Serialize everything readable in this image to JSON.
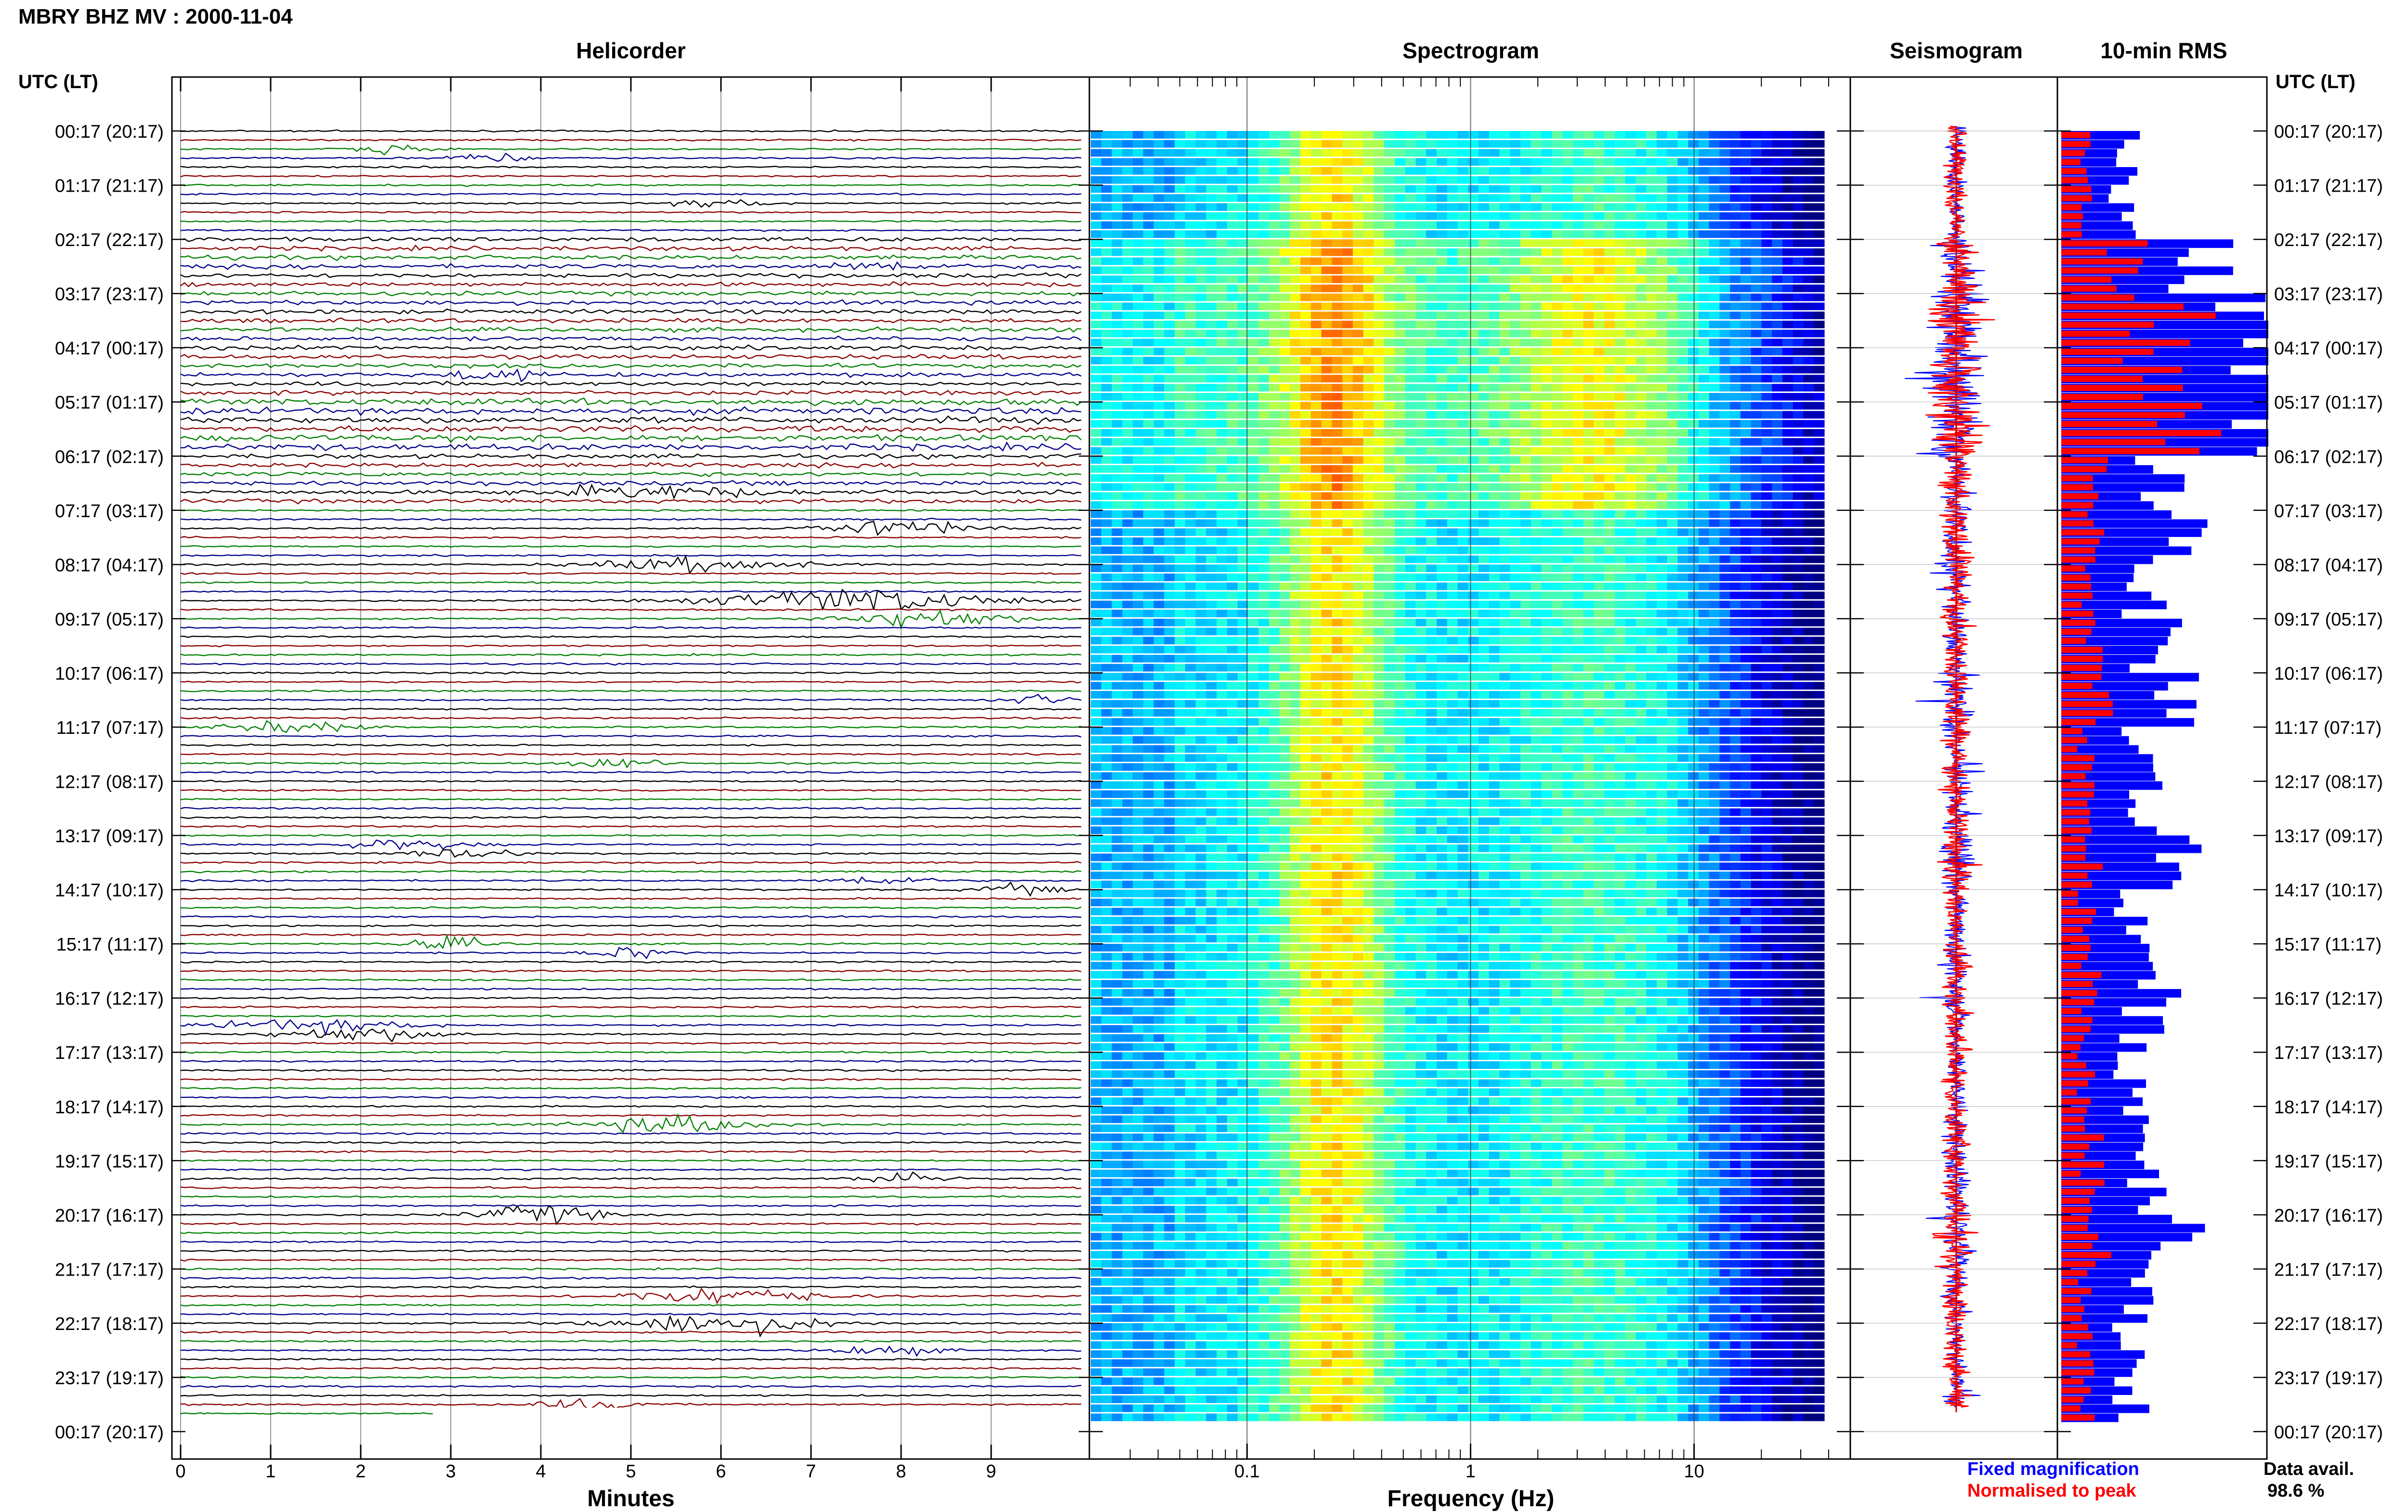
{
  "header": {
    "title": "MBRY BHZ MV : 2000-11-04"
  },
  "panels": {
    "helicorder": "Helicorder",
    "spectrogram": "Spectrogram",
    "seismogram": "Seismogram",
    "rms": "10-min RMS"
  },
  "time_axis_label_left": "UTC (LT)",
  "time_axis_label_right": "UTC (LT)",
  "time_labels": [
    "00:17 (20:17)",
    "01:17 (21:17)",
    "02:17 (22:17)",
    "03:17 (23:17)",
    "04:17 (00:17)",
    "05:17 (01:17)",
    "06:17 (02:17)",
    "07:17 (03:17)",
    "08:17 (04:17)",
    "09:17 (05:17)",
    "10:17 (06:17)",
    "11:17 (07:17)",
    "12:17 (08:17)",
    "13:17 (09:17)",
    "14:17 (10:17)",
    "15:17 (11:17)",
    "16:17 (12:17)",
    "17:17 (13:17)",
    "18:17 (14:17)",
    "19:17 (15:17)",
    "20:17 (16:17)",
    "21:17 (17:17)",
    "22:17 (18:17)",
    "23:17 (19:17)",
    "00:17 (20:17)"
  ],
  "legend": {
    "fixed": "Fixed magnification",
    "normalised": "Normalised to peak",
    "data_avail_label": "Data avail.",
    "data_avail_value": "98.6 %"
  },
  "colors": {
    "trace_cycle": [
      "#000000",
      "#8b0000",
      "#008000",
      "#00008b"
    ],
    "fixed_mag": "#0000ff",
    "normalised": "#ff0000"
  },
  "chart_data": [
    {
      "type": "line",
      "panel": "helicorder",
      "xlabel": "Minutes",
      "xticks": [
        0,
        1,
        2,
        3,
        4,
        5,
        6,
        7,
        8,
        9
      ],
      "xlim": [
        0,
        10
      ],
      "rows_per_hour": 6,
      "row_count": 143,
      "active_hours": [
        2,
        3,
        4,
        5,
        6
      ],
      "events": [
        {
          "row": 2,
          "minute": 2.3,
          "amp": 2.5,
          "dur": 0.5
        },
        {
          "row": 3,
          "minute": 3.4,
          "amp": 2,
          "dur": 0.6
        },
        {
          "row": 8,
          "minute": 6.0,
          "amp": 2,
          "dur": 0.7
        },
        {
          "row": 15,
          "minute": 7.8,
          "amp": 2,
          "dur": 0.8
        },
        {
          "row": 27,
          "minute": 3.5,
          "amp": 3,
          "dur": 0.6
        },
        {
          "row": 40,
          "minute": 5.2,
          "amp": 3,
          "dur": 1.5
        },
        {
          "row": 44,
          "minute": 8.0,
          "amp": 4,
          "dur": 1.2
        },
        {
          "row": 48,
          "minute": 5.8,
          "amp": 3.5,
          "dur": 1.5
        },
        {
          "row": 52,
          "minute": 7.5,
          "amp": 6,
          "dur": 2.0
        },
        {
          "row": 54,
          "minute": 8.3,
          "amp": 5,
          "dur": 1.2
        },
        {
          "row": 63,
          "minute": 9.5,
          "amp": 2.5,
          "dur": 0.5
        },
        {
          "row": 66,
          "minute": 1.2,
          "amp": 3,
          "dur": 1.0
        },
        {
          "row": 70,
          "minute": 4.8,
          "amp": 2.5,
          "dur": 0.8
        },
        {
          "row": 79,
          "minute": 2.5,
          "amp": 2.5,
          "dur": 1.0
        },
        {
          "row": 80,
          "minute": 3.2,
          "amp": 2.5,
          "dur": 0.8
        },
        {
          "row": 83,
          "minute": 7.8,
          "amp": 2.5,
          "dur": 0.7
        },
        {
          "row": 84,
          "minute": 9.3,
          "amp": 2.5,
          "dur": 0.6
        },
        {
          "row": 90,
          "minute": 3.0,
          "amp": 3,
          "dur": 0.6
        },
        {
          "row": 91,
          "minute": 5.0,
          "amp": 3,
          "dur": 0.6
        },
        {
          "row": 99,
          "minute": 1.5,
          "amp": 3,
          "dur": 1.5
        },
        {
          "row": 100,
          "minute": 2.0,
          "amp": 3.5,
          "dur": 1.2
        },
        {
          "row": 110,
          "minute": 5.5,
          "amp": 4,
          "dur": 1.3
        },
        {
          "row": 116,
          "minute": 8.0,
          "amp": 3,
          "dur": 0.6
        },
        {
          "row": 120,
          "minute": 4.0,
          "amp": 4.5,
          "dur": 0.9
        },
        {
          "row": 129,
          "minute": 6.0,
          "amp": 4,
          "dur": 1.5
        },
        {
          "row": 132,
          "minute": 6.0,
          "amp": 5,
          "dur": 1.6
        },
        {
          "row": 135,
          "minute": 7.8,
          "amp": 2.5,
          "dur": 0.8
        },
        {
          "row": 141,
          "minute": 4.5,
          "amp": 2.5,
          "dur": 0.8
        }
      ]
    },
    {
      "type": "heatmap",
      "panel": "spectrogram",
      "xlabel": "Frequency (Hz)",
      "xscale": "log",
      "xlim": [
        0.02,
        50
      ],
      "xticks": [
        0.1,
        1,
        10
      ],
      "xtick_labels": [
        "0.1",
        "1",
        "10"
      ],
      "rows": 143,
      "colormap": "jet",
      "peak_band_hz": [
        0.15,
        0.4
      ],
      "secondary_band_hz": [
        2,
        6
      ]
    },
    {
      "type": "line",
      "panel": "seismogram",
      "series": [
        {
          "name": "Fixed magnification",
          "color": "#0000ff"
        },
        {
          "name": "Normalised to peak",
          "color": "#ff0000"
        }
      ]
    },
    {
      "type": "bar",
      "panel": "rms",
      "orientation": "horizontal",
      "bins": 143,
      "series": [
        {
          "name": "Fixed magnification",
          "color": "#0000ff",
          "hourly_level": [
            0.3,
            0.3,
            0.7,
            1.0,
            0.9,
            1.0,
            0.5,
            0.6,
            0.4,
            0.45,
            0.55,
            0.4,
            0.4,
            0.55,
            0.35,
            0.45,
            0.4,
            0.35,
            0.4,
            0.45,
            0.6,
            0.35,
            0.35,
            0.35
          ]
        },
        {
          "name": "Normalised to peak",
          "color": "#ff0000",
          "hourly_level": [
            0.12,
            0.12,
            0.3,
            0.55,
            0.45,
            0.6,
            0.2,
            0.15,
            0.12,
            0.15,
            0.18,
            0.12,
            0.12,
            0.15,
            0.12,
            0.15,
            0.12,
            0.12,
            0.15,
            0.15,
            0.2,
            0.12,
            0.12,
            0.12
          ]
        }
      ]
    }
  ]
}
